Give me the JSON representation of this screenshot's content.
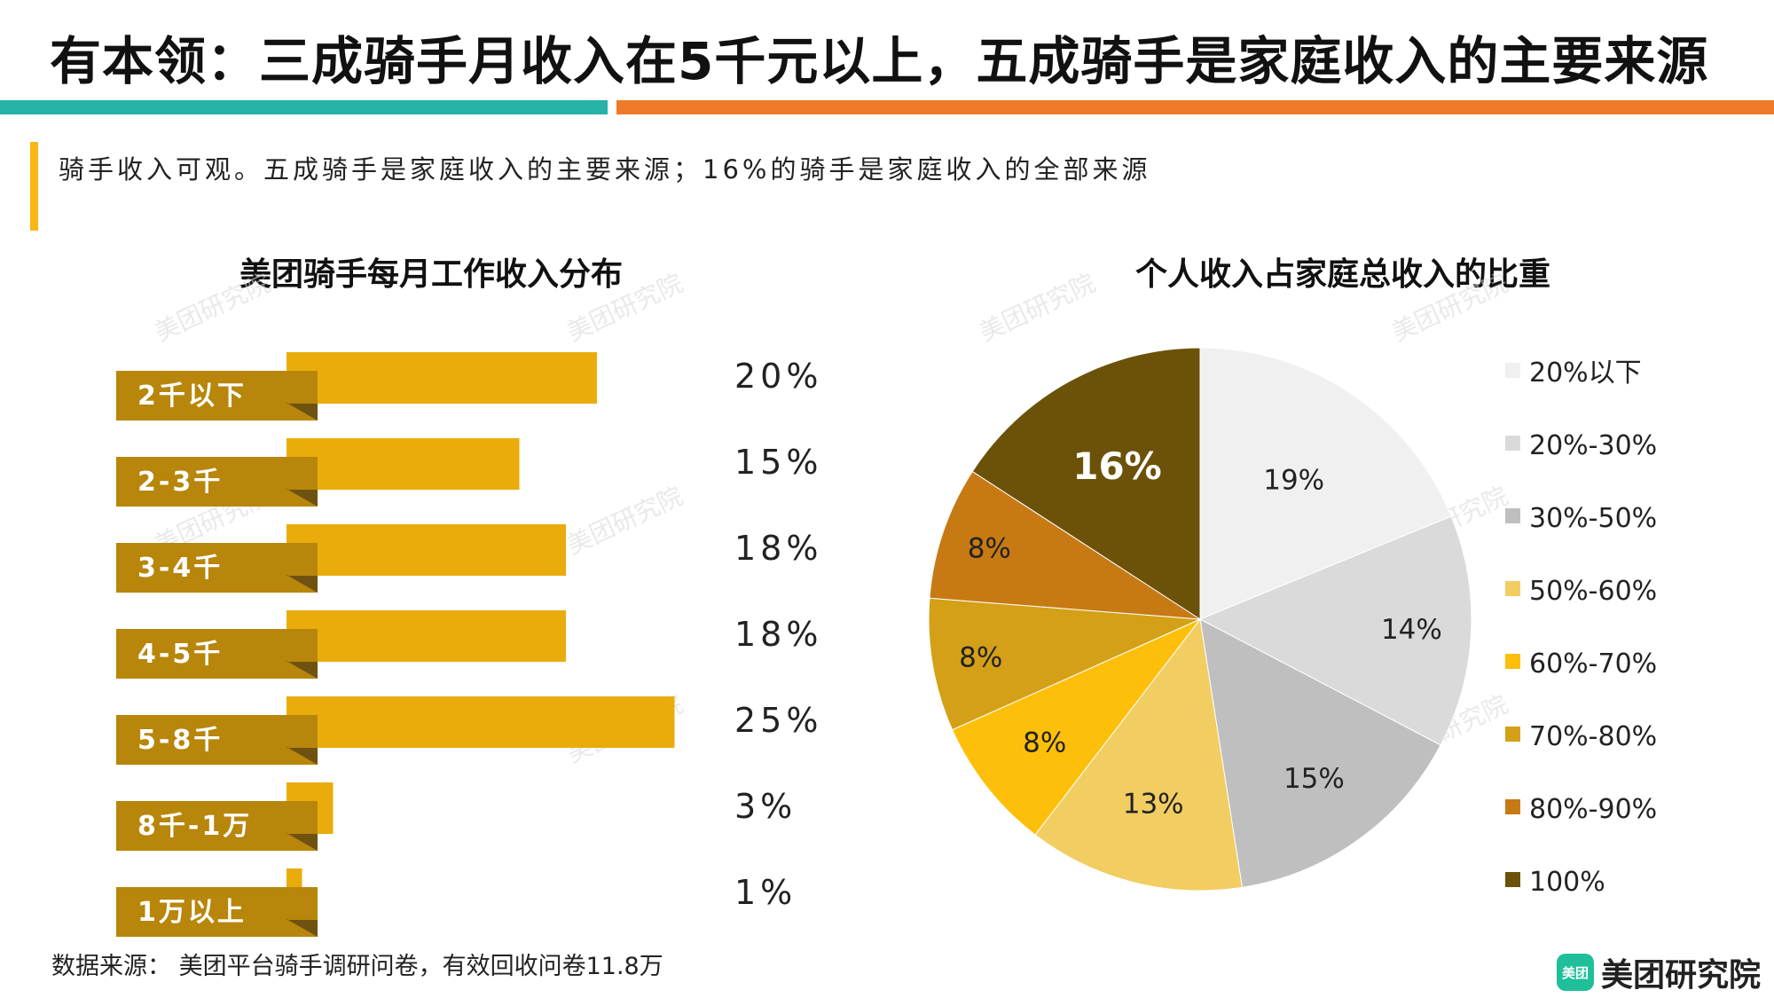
{
  "header": {
    "title": "有本领：三成骑手月收入在5千元以上，五成骑手是家庭收入的主要来源",
    "subtitle": "骑手收入可观。五成骑手是家庭收入的主要来源；16%的骑手是家庭收入的全部来源"
  },
  "colors": {
    "teal": "#26b2a6",
    "orange": "#ee7b2a",
    "accent": "#f7b813",
    "bar": "#e9ac0a",
    "label_bg": "#b7860b",
    "label_fold": "#6e5210"
  },
  "watermark": "美团研究院",
  "chart_data": [
    {
      "type": "bar",
      "orientation": "horizontal",
      "title": "美团骑手每月工作收入分布",
      "categories": [
        "2千以下",
        "2-3千",
        "3-4千",
        "4-5千",
        "5-8千",
        "8千-1万",
        "1万以上"
      ],
      "values": [
        20,
        15,
        18,
        18,
        25,
        3,
        1
      ],
      "value_labels": [
        "20%",
        "15%",
        "18%",
        "18%",
        "25%",
        "3%",
        "1%"
      ],
      "unit": "%"
    },
    {
      "type": "pie",
      "title": "个人收入占家庭总收入的比重",
      "legend_position": "right",
      "slices": [
        {
          "label": "20%以下",
          "value": 19,
          "value_label": "19%",
          "color": "#f0f0f0"
        },
        {
          "label": "20%-30%",
          "value": 14,
          "value_label": "14%",
          "color": "#dadada"
        },
        {
          "label": "30%-50%",
          "value": 15,
          "value_label": "15%",
          "color": "#bfbfbf"
        },
        {
          "label": "50%-60%",
          "value": 13,
          "value_label": "13%",
          "color": "#f1cd62"
        },
        {
          "label": "60%-70%",
          "value": 8,
          "value_label": "8%",
          "color": "#fdbf0a"
        },
        {
          "label": "70%-80%",
          "value": 8,
          "value_label": "8%",
          "color": "#d4a017"
        },
        {
          "label": "80%-90%",
          "value": 8,
          "value_label": "8%",
          "color": "#c77a14"
        },
        {
          "label": "100%",
          "value": 16,
          "value_label": "16%",
          "color": "#6b5208"
        }
      ]
    }
  ],
  "footer": {
    "source": "数据来源： 美团平台骑手调研问卷，有效回收问卷11.8万",
    "logo_mark": "美团",
    "logo_text": "美团研究院"
  }
}
